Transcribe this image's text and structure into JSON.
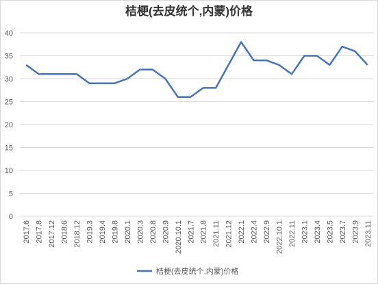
{
  "chart_data": {
    "type": "line",
    "title": "桔梗(去皮统个,内蒙)价格",
    "categories": [
      "2017.6",
      "2017.8",
      "2017.12",
      "2018.6",
      "2018.12",
      "2019.3",
      "2019.4",
      "2019.8",
      "2020.1",
      "2020.3",
      "2020.8",
      "2020.9",
      "2020.10.1",
      "2021.7",
      "2021.8",
      "2021.11",
      "2021.12",
      "2022.1",
      "2022.4",
      "2022.9",
      "2022.10.1",
      "2022.11",
      "2023.1",
      "2023.4",
      "2023.5",
      "2023.7",
      "2023.9",
      "2023.11"
    ],
    "series": [
      {
        "name": "桔梗(去皮统个,内蒙)价格",
        "color": "#4472c4",
        "values": [
          33,
          31,
          31,
          31,
          31,
          29,
          29,
          29,
          30,
          32,
          32,
          30,
          26,
          26,
          28,
          28,
          33,
          38,
          34,
          34,
          33,
          31,
          35,
          35,
          33,
          37,
          36,
          33
        ]
      }
    ],
    "ylim": [
      0,
      40
    ],
    "yticks": [
      0,
      5,
      10,
      15,
      20,
      25,
      30,
      35,
      40
    ],
    "grid": true,
    "legend": "bottom"
  }
}
